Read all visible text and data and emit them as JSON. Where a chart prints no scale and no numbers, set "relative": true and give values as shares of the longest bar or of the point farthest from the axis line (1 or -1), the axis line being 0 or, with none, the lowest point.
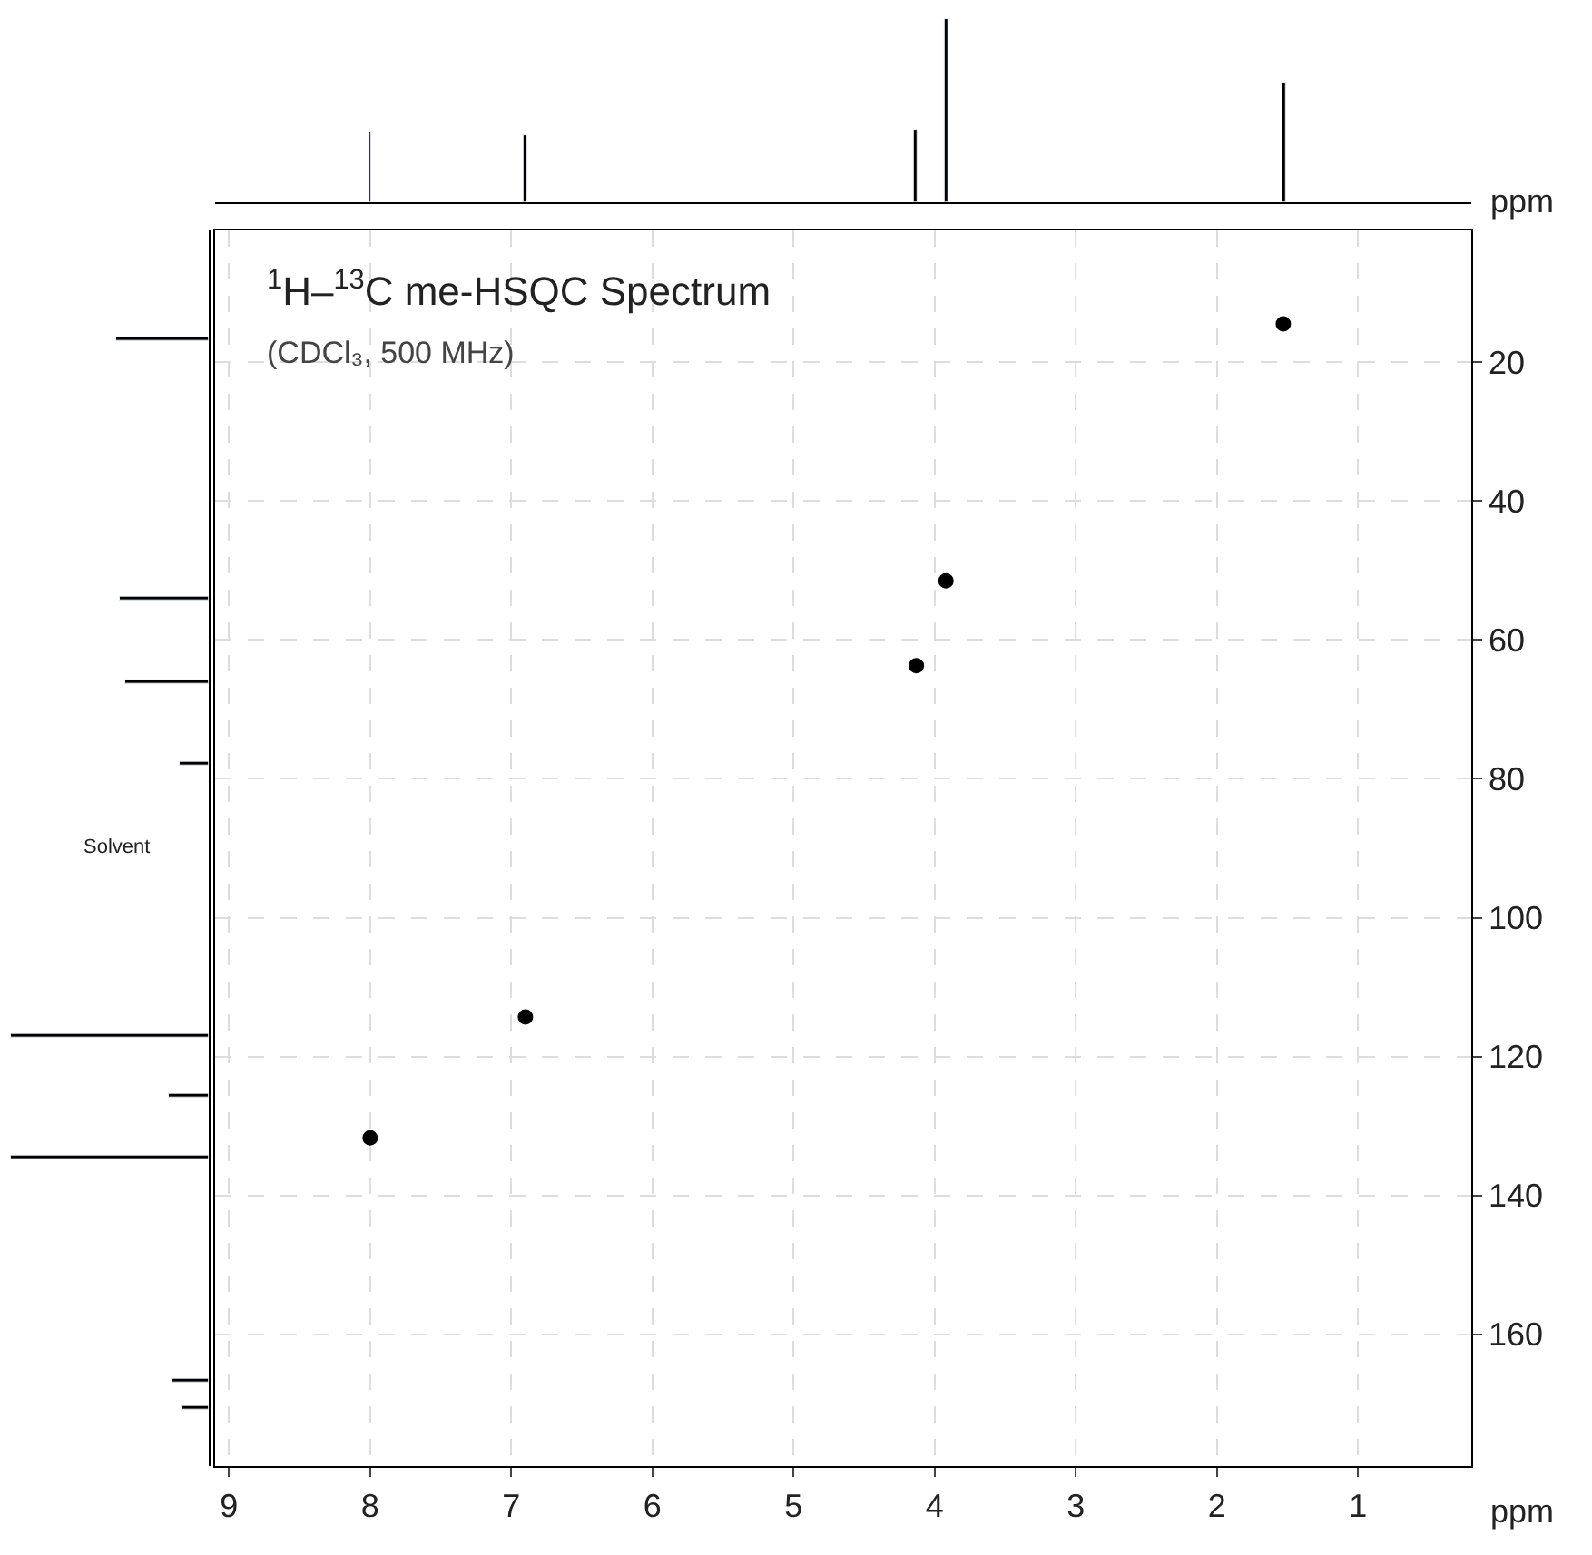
{
  "chart_data": [
    {
      "type": "bar",
      "relative": true,
      "x": [
        8.0,
        6.9,
        4.13,
        3.92,
        1.53
      ],
      "values": [
        0.39,
        0.37,
        0.4,
        1,
        0.65
      ],
      "color": "#000000",
      "xlim": [
        9.1,
        0.2
      ],
      "xlabel": "ppm",
      "tick_labels": false
    },
    {
      "type": "bar",
      "orientation": "horizontal",
      "relative": true,
      "x": [
        16.6,
        54,
        66,
        77.7,
        117,
        125.7,
        134.6,
        166.7,
        170.6
      ],
      "values": [
        0.47,
        0.45,
        0.42,
        0.15,
        1,
        0.2,
        1,
        0.18,
        0.14
      ],
      "color": "#000000",
      "ylim": [
        179,
        1
      ],
      "tick_labels": false,
      "annotations": [
        "Solvent"
      ]
    },
    {
      "type": "scatter",
      "title": "$^{1}$H–$^{13}$C me-HSQC Spectrum",
      "subtitle": "(CDCl₃, 500 MHz)",
      "x": [
        8.0,
        6.9,
        4.13,
        3.92,
        1.53
      ],
      "values": [
        131.7,
        114.3,
        63.7,
        51.5,
        14.5
      ],
      "color": "#000000",
      "marker": "circle",
      "xlim": [
        9.1,
        0.2
      ],
      "xticks": [
        9,
        8,
        7,
        6,
        5,
        4,
        3,
        2,
        1
      ],
      "ylim": [
        179,
        1
      ],
      "yticks": [
        20,
        40,
        60,
        80,
        100,
        120,
        140,
        160
      ],
      "xlabel": "ppm",
      "grid": true
    }
  ]
}
